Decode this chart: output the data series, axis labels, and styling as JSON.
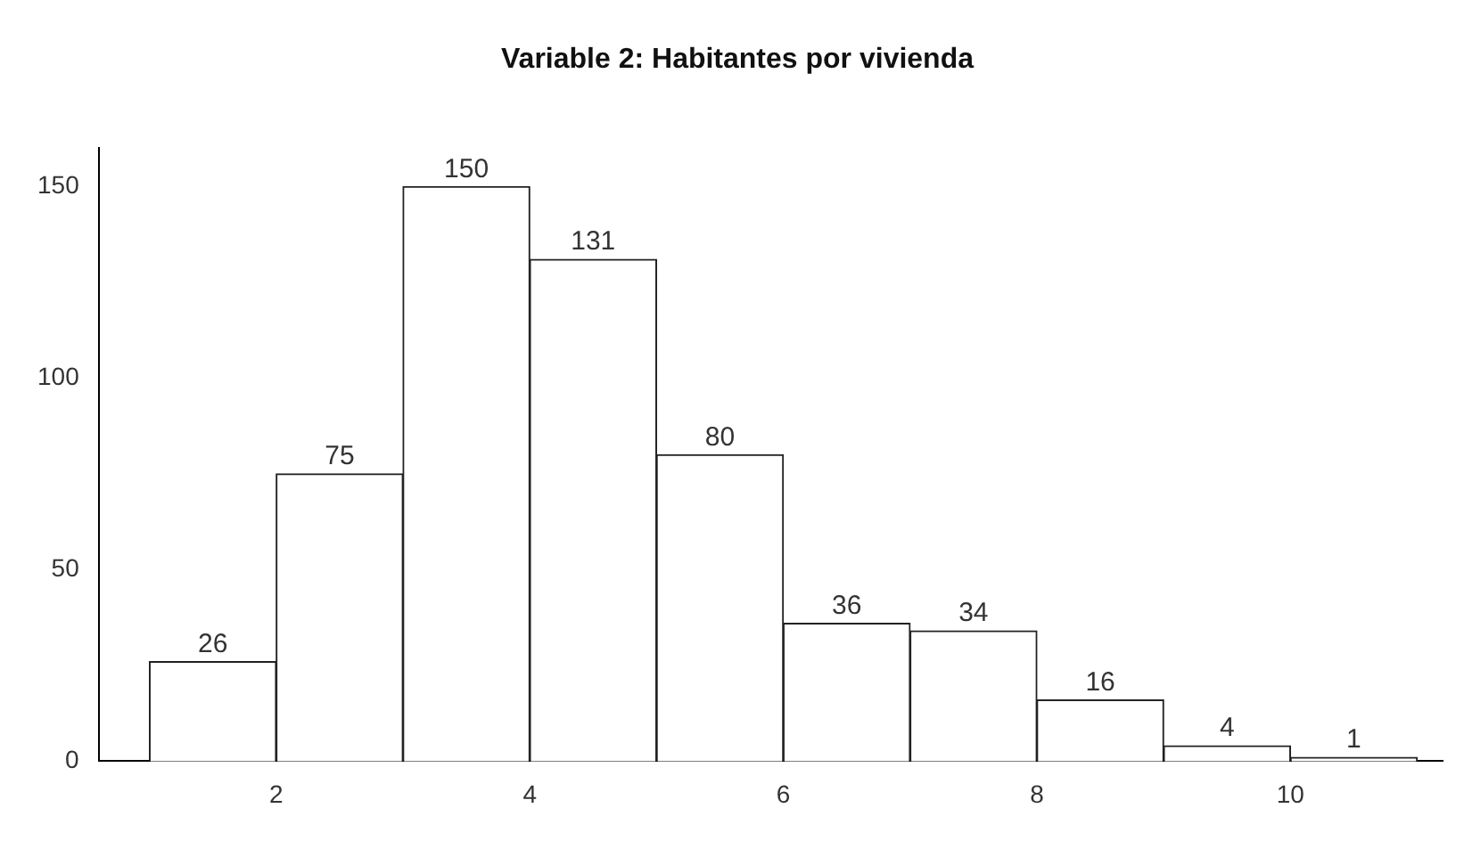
{
  "chart_data": {
    "type": "histogram",
    "title": "Variable 2: Habitantes por vivienda",
    "bins": [
      1,
      2,
      3,
      4,
      5,
      6,
      7,
      8,
      9,
      10,
      11
    ],
    "values": [
      26,
      75,
      150,
      131,
      80,
      36,
      34,
      16,
      4,
      1
    ],
    "color": "#ffffff",
    "xlim": [
      0.6,
      11.2
    ],
    "xticks": [
      2,
      4,
      6,
      8,
      10
    ],
    "ylim": [
      0,
      160
    ],
    "yticks": [
      0,
      50,
      100,
      150
    ],
    "grid": false,
    "data_labels": true
  }
}
